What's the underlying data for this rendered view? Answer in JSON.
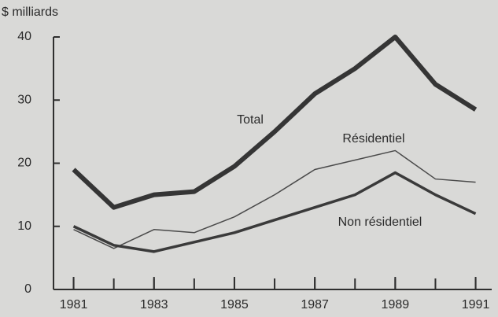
{
  "chart_data": {
    "type": "line",
    "y_axis_label": "$ milliards",
    "x": [
      1981,
      1982,
      1983,
      1984,
      1985,
      1986,
      1987,
      1988,
      1989,
      1990,
      1991
    ],
    "xlim": [
      1980.5,
      1991.4
    ],
    "xticks": [
      1981,
      1983,
      1985,
      1987,
      1989,
      1991
    ],
    "ylim": [
      0,
      40
    ],
    "yticks": [
      0,
      10,
      20,
      30,
      40
    ],
    "grid": false,
    "series": [
      {
        "name": "Total",
        "color": "#353535",
        "values": [
          19,
          13,
          15,
          15.5,
          19.5,
          25,
          31,
          35,
          40,
          32.5,
          28.5
        ]
      },
      {
        "name": "Résidentiel",
        "color": "#4a4a4a",
        "values": [
          9.5,
          6.5,
          9.5,
          9,
          11.5,
          15,
          19,
          20.5,
          22,
          17.5,
          17
        ]
      },
      {
        "name": "Non résidentiel",
        "color": "#3a3a3a",
        "values": [
          10,
          7,
          6,
          7.5,
          9,
          11,
          13,
          15,
          18.5,
          15,
          12
        ]
      }
    ]
  }
}
